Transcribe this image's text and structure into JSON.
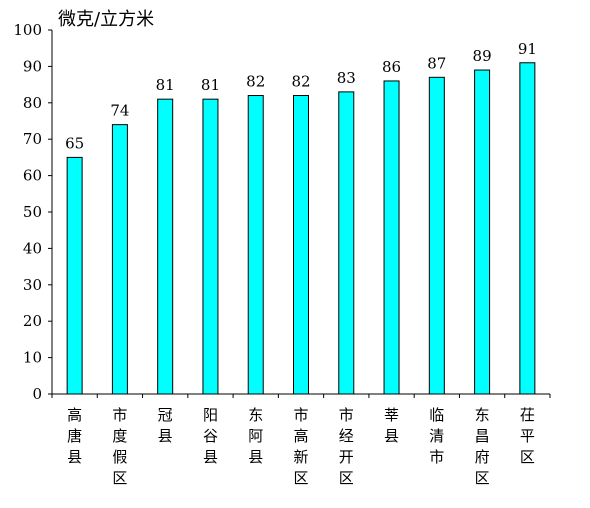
{
  "chart_data": {
    "type": "bar",
    "title": "",
    "ylabel": "微克/立方米",
    "xlabel": "",
    "ylim": [
      0,
      100
    ],
    "yticks": [
      0,
      10,
      20,
      30,
      40,
      50,
      60,
      70,
      80,
      90,
      100
    ],
    "grid": false,
    "legend": "none",
    "bar_color": "#00FFFF",
    "bar_edge_color": "#000000",
    "categories": [
      "高唐县",
      "市度假区",
      "冠县",
      "阳谷县",
      "东阿县",
      "市高新区",
      "市经开区",
      "莘县",
      "临清市",
      "东昌府区",
      "茌平区"
    ],
    "values": [
      65,
      74,
      81,
      81,
      82,
      82,
      83,
      86,
      87,
      89,
      91
    ]
  }
}
